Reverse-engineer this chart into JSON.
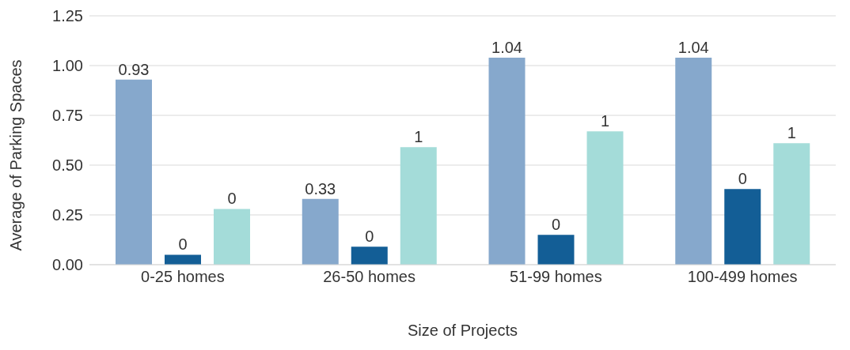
{
  "chart_data": {
    "type": "bar",
    "xlabel": "Size of Projects",
    "ylabel": "Average of Parking Spaces",
    "categories": [
      "0-25 homes",
      "26-50 homes",
      "51-99 homes",
      "100-499 homes"
    ],
    "series": [
      {
        "color": "#86a8cc",
        "values": [
          0.93,
          0.33,
          1.04,
          1.04
        ],
        "value_labels": [
          "0.93",
          "0.33",
          "1.04",
          "1.04"
        ]
      },
      {
        "color": "#135e96",
        "values": [
          0.05,
          0.09,
          0.15,
          0.38
        ],
        "value_labels": [
          "0",
          "0",
          "0",
          "0"
        ]
      },
      {
        "color": "#a4dcd9",
        "values": [
          0.28,
          0.59,
          0.67,
          0.61
        ],
        "value_labels": [
          "0",
          "1",
          "1",
          "1"
        ]
      }
    ],
    "ylim": [
      0,
      1.25
    ],
    "yticks": [
      {
        "value": 0,
        "label": "0.00"
      },
      {
        "value": 0.25,
        "label": "0.25"
      },
      {
        "value": 0.5,
        "label": "0.50"
      },
      {
        "value": 0.75,
        "label": "0.75"
      },
      {
        "value": 1,
        "label": "1.00"
      },
      {
        "value": 1.25,
        "label": "1.25"
      }
    ],
    "grid": "y",
    "legend": false
  }
}
